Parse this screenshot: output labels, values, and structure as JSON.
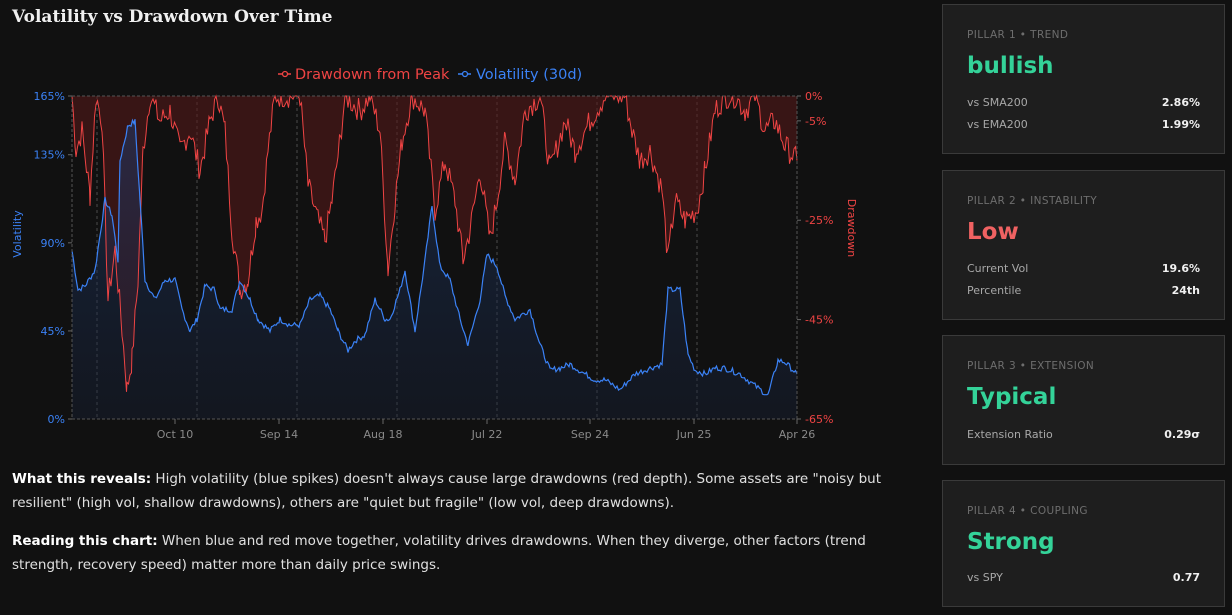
{
  "title": "Volatility vs Drawdown Over Time",
  "chart_data": {
    "type": "area",
    "legend_position": "top-center",
    "x_tick_labels": [
      "Oct 10",
      "Sep 14",
      "Aug 18",
      "Jul 22",
      "Sep 24",
      "Jun 25",
      "Apr 26"
    ],
    "x_tick_index": [
      103,
      207,
      311,
      415,
      518,
      622,
      725
    ],
    "x_range": [
      0,
      725
    ],
    "y_left": {
      "label": "Volatility",
      "ticks": [
        "165%",
        "135%",
        "90%",
        "45%",
        "0%"
      ],
      "tick_values": [
        165,
        135,
        90,
        45,
        0
      ],
      "range": [
        0,
        165
      ],
      "color": "#3b82f6"
    },
    "y_right": {
      "label": "Drawdown",
      "ticks": [
        "0%",
        "-5%",
        "-25%",
        "-45%",
        "-65%"
      ],
      "tick_values": [
        0,
        -5,
        -25,
        -45,
        -65
      ],
      "range": [
        -65,
        0
      ],
      "color": "#ef4444"
    },
    "grid": "vertical dashed",
    "series": [
      {
        "name": "Drawdown from Peak",
        "axis": "right",
        "color": "#ef4444",
        "points": [
          [
            0,
            0
          ],
          [
            4,
            -11
          ],
          [
            10,
            -7
          ],
          [
            18,
            -20
          ],
          [
            24,
            0
          ],
          [
            30,
            -5
          ],
          [
            36,
            -41
          ],
          [
            43,
            -31
          ],
          [
            50,
            -47
          ],
          [
            55,
            -59
          ],
          [
            60,
            -53
          ],
          [
            66,
            -37
          ],
          [
            71,
            -11
          ],
          [
            78,
            0
          ],
          [
            88,
            -5
          ],
          [
            98,
            -3
          ],
          [
            108,
            -11
          ],
          [
            118,
            -7
          ],
          [
            128,
            -15
          ],
          [
            138,
            -5
          ],
          [
            146,
            0
          ],
          [
            153,
            -7
          ],
          [
            160,
            -27
          ],
          [
            168,
            -39
          ],
          [
            176,
            -37
          ],
          [
            184,
            -25
          ],
          [
            190,
            -23
          ],
          [
            196,
            -11
          ],
          [
            203,
            0
          ],
          [
            218,
            0
          ],
          [
            228,
            0
          ],
          [
            236,
            -18
          ],
          [
            246,
            -25
          ],
          [
            253,
            -29
          ],
          [
            260,
            -21
          ],
          [
            268,
            -9
          ],
          [
            273,
            0
          ],
          [
            288,
            -3
          ],
          [
            298,
            0
          ],
          [
            308,
            -7
          ],
          [
            316,
            -35
          ],
          [
            323,
            -21
          ],
          [
            330,
            -9
          ],
          [
            340,
            0
          ],
          [
            353,
            -3
          ],
          [
            363,
            -23
          ],
          [
            373,
            -13
          ],
          [
            383,
            -21
          ],
          [
            391,
            -33
          ],
          [
            398,
            -27
          ],
          [
            408,
            -15
          ],
          [
            418,
            -29
          ],
          [
            425,
            -21
          ],
          [
            433,
            -9
          ],
          [
            443,
            -17
          ],
          [
            453,
            -3
          ],
          [
            468,
            0
          ],
          [
            478,
            -15
          ],
          [
            493,
            -5
          ],
          [
            503,
            -11
          ],
          [
            518,
            -5
          ],
          [
            533,
            0
          ],
          [
            553,
            0
          ],
          [
            560,
            -7
          ],
          [
            568,
            -13
          ],
          [
            578,
            -11
          ],
          [
            590,
            -19
          ],
          [
            596,
            -33
          ],
          [
            603,
            -21
          ],
          [
            613,
            -25
          ],
          [
            625,
            -23
          ],
          [
            633,
            -15
          ],
          [
            643,
            -3
          ],
          [
            653,
            0
          ],
          [
            663,
            0
          ],
          [
            673,
            -3
          ],
          [
            683,
            0
          ],
          [
            693,
            -7
          ],
          [
            703,
            -5
          ],
          [
            713,
            -10
          ],
          [
            725,
            -13
          ]
        ]
      },
      {
        "name": "Volatility (30d)",
        "axis": "left",
        "color": "#3b82f6",
        "points": [
          [
            0,
            86
          ],
          [
            6,
            66
          ],
          [
            13,
            68
          ],
          [
            23,
            76
          ],
          [
            33,
            112
          ],
          [
            40,
            104
          ],
          [
            46,
            81
          ],
          [
            48,
            132
          ],
          [
            56,
            150
          ],
          [
            63,
            152
          ],
          [
            68,
            112
          ],
          [
            73,
            71
          ],
          [
            83,
            61
          ],
          [
            93,
            71
          ],
          [
            103,
            71
          ],
          [
            110,
            56
          ],
          [
            118,
            45
          ],
          [
            125,
            51
          ],
          [
            133,
            68
          ],
          [
            143,
            66
          ],
          [
            148,
            56
          ],
          [
            160,
            56
          ],
          [
            168,
            71
          ],
          [
            178,
            61
          ],
          [
            186,
            51
          ],
          [
            198,
            45
          ],
          [
            208,
            51
          ],
          [
            218,
            48
          ],
          [
            228,
            48
          ],
          [
            238,
            61
          ],
          [
            248,
            63
          ],
          [
            258,
            56
          ],
          [
            266,
            45
          ],
          [
            276,
            35
          ],
          [
            283,
            40
          ],
          [
            293,
            43
          ],
          [
            303,
            61
          ],
          [
            313,
            51
          ],
          [
            318,
            51
          ],
          [
            328,
            66
          ],
          [
            333,
            76
          ],
          [
            343,
            45
          ],
          [
            353,
            81
          ],
          [
            360,
            109
          ],
          [
            368,
            78
          ],
          [
            378,
            71
          ],
          [
            388,
            51
          ],
          [
            396,
            38
          ],
          [
            408,
            61
          ],
          [
            415,
            84
          ],
          [
            425,
            78
          ],
          [
            433,
            63
          ],
          [
            443,
            51
          ],
          [
            458,
            56
          ],
          [
            468,
            38
          ],
          [
            478,
            25
          ],
          [
            488,
            26
          ],
          [
            498,
            28
          ],
          [
            513,
            23
          ],
          [
            523,
            20
          ],
          [
            533,
            20
          ],
          [
            548,
            15
          ],
          [
            563,
            23
          ],
          [
            578,
            26
          ],
          [
            590,
            28
          ],
          [
            596,
            66
          ],
          [
            608,
            66
          ],
          [
            616,
            33
          ],
          [
            623,
            25
          ],
          [
            633,
            23
          ],
          [
            643,
            26
          ],
          [
            653,
            26
          ],
          [
            668,
            23
          ],
          [
            683,
            17
          ],
          [
            696,
            12
          ],
          [
            706,
            30
          ],
          [
            713,
            29
          ],
          [
            725,
            23
          ]
        ]
      }
    ]
  },
  "description": {
    "p1_label": "What this reveals:",
    "p1_text": " High volatility (blue spikes) doesn't always cause large drawdowns (red depth). Some assets are \"noisy but resilient\" (high vol, shallow drawdowns), others are \"quiet but fragile\" (low vol, deep drawdowns).",
    "p2_label": "Reading this chart:",
    "p2_text": " When blue and red move together, volatility drives drawdowns. When they diverge, other factors (trend strength, recovery speed) matter more than daily price swings."
  },
  "pillars": [
    {
      "label": "PILLAR 1 • TREND",
      "value": "bullish",
      "color": "#34d399",
      "rows": [
        {
          "k": "vs SMA200",
          "v": "2.86%"
        },
        {
          "k": "vs EMA200",
          "v": "1.99%"
        }
      ]
    },
    {
      "label": "PILLAR 2 • INSTABILITY",
      "value": "Low",
      "color": "#f06262",
      "rows": [
        {
          "k": "Current Vol",
          "v": "19.6%"
        },
        {
          "k": "Percentile",
          "v": "24th"
        }
      ]
    },
    {
      "label": "PILLAR 3 • EXTENSION",
      "value": "Typical",
      "color": "#34d399",
      "rows": [
        {
          "k": "Extension Ratio",
          "v": "0.29σ"
        }
      ]
    },
    {
      "label": "PILLAR 4 • COUPLING",
      "value": "Strong",
      "color": "#34d399",
      "rows": [
        {
          "k": "vs SPY",
          "v": "0.77"
        }
      ]
    }
  ]
}
